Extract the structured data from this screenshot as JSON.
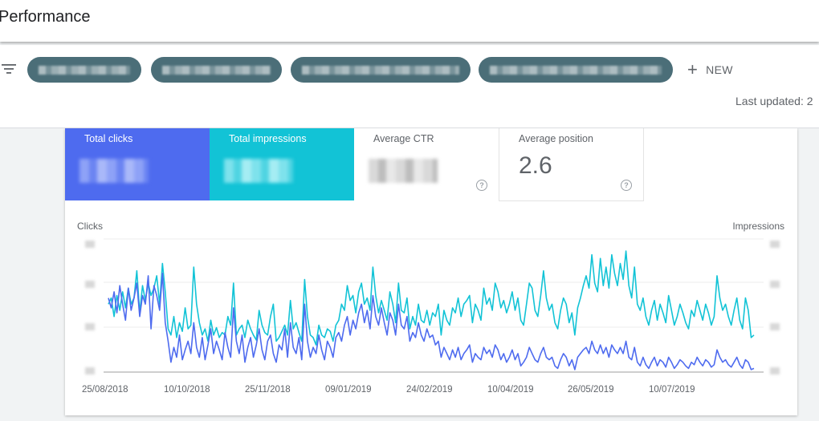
{
  "header": {
    "title": "Performance"
  },
  "filters": {
    "new_label": "NEW",
    "last_updated": "Last updated: 2"
  },
  "metrics": {
    "clicks_label": "Total clicks",
    "impressions_label": "Total impressions",
    "ctr_label": "Average CTR",
    "position_label": "Average position",
    "position_value": "2.6"
  },
  "colors": {
    "clicks": "#4e6bef",
    "impressions": "#12c3d6",
    "chip": "#4b6e78"
  },
  "chart": {
    "left_axis_label": "Clicks",
    "right_axis_label": "Impressions",
    "x_ticks": [
      "25/08/2018",
      "10/10/2018",
      "25/11/2018",
      "09/01/2019",
      "24/02/2019",
      "10/04/2019",
      "26/05/2019",
      "10/07/2019"
    ]
  },
  "chart_data": {
    "type": "line",
    "xlabel": "",
    "ylabel_left": "Clicks",
    "ylabel_right": "Impressions",
    "x_range": [
      "2018-08-25",
      "2019-08-20"
    ],
    "x_ticks": [
      "25/08/2018",
      "10/10/2018",
      "25/11/2018",
      "09/01/2019",
      "24/02/2019",
      "10/04/2019",
      "26/05/2019",
      "10/07/2019"
    ],
    "grid": true,
    "series": [
      {
        "name": "Impressions",
        "color": "#12c3d6",
        "values": [
          0.55,
          0.6,
          0.45,
          0.62,
          0.5,
          0.65,
          0.52,
          0.68,
          0.55,
          0.6,
          0.82,
          0.48,
          0.7,
          0.58,
          0.72,
          0.62,
          0.68,
          0.78,
          0.55,
          0.88,
          0.65,
          0.35,
          0.3,
          0.45,
          0.28,
          0.4,
          0.33,
          0.52,
          0.35,
          0.38,
          0.85,
          0.55,
          0.4,
          0.3,
          0.35,
          0.25,
          0.42,
          0.3,
          0.36,
          0.28,
          0.32,
          0.3,
          0.45,
          0.38,
          0.72,
          0.3,
          0.35,
          0.38,
          0.28,
          0.42,
          0.35,
          0.3,
          0.26,
          0.5,
          0.38,
          0.32,
          0.3,
          0.45,
          0.55,
          0.25,
          0.28,
          0.33,
          0.38,
          0.3,
          0.58,
          0.35,
          0.4,
          0.32,
          0.25,
          0.75,
          0.45,
          0.3,
          0.28,
          0.22,
          0.38,
          0.3,
          0.28,
          0.35,
          0.33,
          0.25,
          0.38,
          0.42,
          0.55,
          0.5,
          0.7,
          0.58,
          0.62,
          0.48,
          0.65,
          0.72,
          0.55,
          0.6,
          0.5,
          0.85,
          0.62,
          0.48,
          0.58,
          0.5,
          0.42,
          0.65,
          0.55,
          0.4,
          0.72,
          0.5,
          0.48,
          0.6,
          0.35,
          0.45,
          0.38,
          0.55,
          0.42,
          0.4,
          0.5,
          0.38,
          0.48,
          0.45,
          0.55,
          0.3,
          0.5,
          0.42,
          0.38,
          0.52,
          0.48,
          0.6,
          0.45,
          0.55,
          0.58,
          0.62,
          0.4,
          0.55,
          0.5,
          0.42,
          0.68,
          0.55,
          0.6,
          0.5,
          0.72,
          0.65,
          0.52,
          0.58,
          0.48,
          0.55,
          0.65,
          0.5,
          0.6,
          0.42,
          0.38,
          0.55,
          0.72,
          0.68,
          0.5,
          0.45,
          0.62,
          0.82,
          0.6,
          0.5,
          0.55,
          0.4,
          0.35,
          0.5,
          0.6,
          0.55,
          0.4,
          0.48,
          0.3,
          0.52,
          0.6,
          0.7,
          0.78,
          0.68,
          0.95,
          0.72,
          0.65,
          0.92,
          0.7,
          0.85,
          0.68,
          0.95,
          0.8,
          0.7,
          0.88,
          0.75,
          0.98,
          0.7,
          0.6,
          0.85,
          0.55,
          0.5,
          0.6,
          0.45,
          0.38,
          0.5,
          0.58,
          0.42,
          0.55,
          0.48,
          0.4,
          0.62,
          0.5,
          0.38,
          0.45,
          0.55,
          0.48,
          0.4,
          0.35,
          0.5,
          0.45,
          0.58,
          0.5,
          0.42,
          0.55,
          0.48,
          0.38,
          0.45,
          0.78,
          0.6,
          0.5,
          0.55,
          0.45,
          0.38,
          0.5,
          0.6,
          0.42,
          0.35,
          0.6,
          0.5,
          0.28,
          0.3
        ],
        "axis": "right"
      },
      {
        "name": "Clicks",
        "color": "#4e6bef",
        "values": [
          0.6,
          0.52,
          0.65,
          0.48,
          0.7,
          0.55,
          0.42,
          0.68,
          0.5,
          0.6,
          0.72,
          0.45,
          0.62,
          0.55,
          0.78,
          0.35,
          0.7,
          0.62,
          0.5,
          0.8,
          0.4,
          0.25,
          0.08,
          0.2,
          0.12,
          0.3,
          0.1,
          0.18,
          0.25,
          0.15,
          0.4,
          0.2,
          0.12,
          0.28,
          0.1,
          0.22,
          0.35,
          0.15,
          0.25,
          0.18,
          0.1,
          0.32,
          0.2,
          0.12,
          0.52,
          0.25,
          0.15,
          0.3,
          0.08,
          0.2,
          0.28,
          0.12,
          0.22,
          0.35,
          0.18,
          0.1,
          0.25,
          0.3,
          0.15,
          0.08,
          0.22,
          0.18,
          0.35,
          0.12,
          0.4,
          0.2,
          0.15,
          0.28,
          0.1,
          0.55,
          0.25,
          0.12,
          0.2,
          0.15,
          0.3,
          0.18,
          0.1,
          0.25,
          0.2,
          0.12,
          0.28,
          0.32,
          0.25,
          0.38,
          0.45,
          0.3,
          0.42,
          0.35,
          0.48,
          0.55,
          0.4,
          0.5,
          0.35,
          0.62,
          0.45,
          0.38,
          0.52,
          0.4,
          0.3,
          0.48,
          0.42,
          0.3,
          0.55,
          0.38,
          0.35,
          0.45,
          0.25,
          0.32,
          0.28,
          0.4,
          0.3,
          0.25,
          0.35,
          0.28,
          0.3,
          0.22,
          0.25,
          0.12,
          0.2,
          0.15,
          0.1,
          0.18,
          0.12,
          0.2,
          0.1,
          0.15,
          0.18,
          0.22,
          0.08,
          0.15,
          0.12,
          0.1,
          0.2,
          0.15,
          0.18,
          0.12,
          0.22,
          0.18,
          0.1,
          0.15,
          0.08,
          0.12,
          0.18,
          0.1,
          0.15,
          0.05,
          0.08,
          0.12,
          0.2,
          0.15,
          0.1,
          0.08,
          0.15,
          0.2,
          0.12,
          0.1,
          0.12,
          0.05,
          0.03,
          0.1,
          0.15,
          0.12,
          0.05,
          0.1,
          0.02,
          0.12,
          0.15,
          0.18,
          0.2,
          0.15,
          0.25,
          0.18,
          0.15,
          0.22,
          0.15,
          0.2,
          0.12,
          0.22,
          0.18,
          0.15,
          0.2,
          0.15,
          0.25,
          0.12,
          0.1,
          0.2,
          0.08,
          0.05,
          0.12,
          0.06,
          0.03,
          0.08,
          0.12,
          0.05,
          0.1,
          0.08,
          0.04,
          0.12,
          0.08,
          0.03,
          0.06,
          0.1,
          0.08,
          0.05,
          0.03,
          0.08,
          0.06,
          0.12,
          0.08,
          0.05,
          0.1,
          0.08,
          0.04,
          0.06,
          0.18,
          0.12,
          0.08,
          0.1,
          0.06,
          0.04,
          0.08,
          0.12,
          0.06,
          0.03,
          0.1,
          0.08,
          0.02,
          0.03
        ],
        "axis": "left"
      }
    ]
  }
}
